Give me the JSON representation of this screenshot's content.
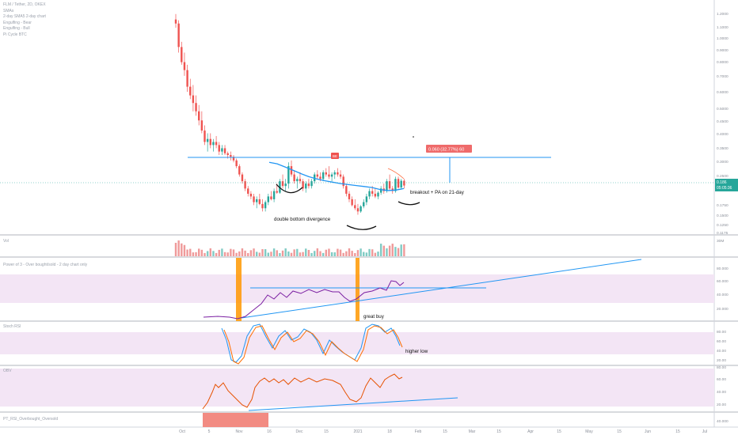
{
  "chart_data": {
    "type": "candlestick",
    "symbol_header": "FLM / Tether, 2D, OKEX",
    "legend": [
      "SMAs",
      "2-day SMA5 2-day chart",
      "Engulfing - Bear",
      "Engulfing - Bull",
      "Pi Cycle BTC"
    ],
    "price_axis": {
      "ticks": [
        "1.2000",
        "1.1000",
        "1.0000",
        "0.9000",
        "0.8000",
        "0.7000",
        "0.6000",
        "0.5000",
        "0.4500",
        "0.4000",
        "0.3500",
        "0.3000",
        "0.2500",
        "0.2000",
        "0.1750",
        "0.1500",
        "0.1250",
        "0.1175"
      ],
      "last_price": "0.186",
      "countdown": "05:05:36",
      "log_scale": true
    },
    "time_axis": [
      "Oct",
      "5",
      "Nov",
      "16",
      "Dec",
      "15",
      "2021",
      "18",
      "Feb",
      "15",
      "Mar",
      "15",
      "Apr",
      "15",
      "May",
      "15",
      "Jun",
      "15",
      "Jul"
    ],
    "candles": [
      [
        1.15,
        1.22,
        1.05,
        1.1
      ],
      [
        1.1,
        1.14,
        0.8,
        0.85
      ],
      [
        0.85,
        0.9,
        0.7,
        0.72
      ],
      [
        0.72,
        0.8,
        0.62,
        0.66
      ],
      [
        0.66,
        0.7,
        0.52,
        0.55
      ],
      [
        0.55,
        0.6,
        0.48,
        0.5
      ],
      [
        0.5,
        0.56,
        0.42,
        0.46
      ],
      [
        0.46,
        0.5,
        0.4,
        0.42
      ],
      [
        0.42,
        0.45,
        0.36,
        0.38
      ],
      [
        0.38,
        0.42,
        0.33,
        0.34
      ],
      [
        0.34,
        0.36,
        0.29,
        0.3
      ],
      [
        0.3,
        0.33,
        0.27,
        0.31
      ],
      [
        0.31,
        0.33,
        0.28,
        0.29
      ],
      [
        0.29,
        0.31,
        0.27,
        0.3
      ],
      [
        0.3,
        0.32,
        0.28,
        0.29
      ],
      [
        0.29,
        0.3,
        0.26,
        0.27
      ],
      [
        0.27,
        0.29,
        0.26,
        0.28
      ],
      [
        0.28,
        0.29,
        0.26,
        0.265
      ],
      [
        0.265,
        0.27,
        0.25,
        0.26
      ],
      [
        0.26,
        0.27,
        0.245,
        0.255
      ],
      [
        0.255,
        0.26,
        0.24,
        0.245
      ],
      [
        0.245,
        0.25,
        0.225,
        0.23
      ],
      [
        0.23,
        0.235,
        0.205,
        0.21
      ],
      [
        0.21,
        0.215,
        0.19,
        0.195
      ],
      [
        0.195,
        0.2,
        0.175,
        0.18
      ],
      [
        0.18,
        0.185,
        0.165,
        0.17
      ],
      [
        0.17,
        0.175,
        0.16,
        0.165
      ],
      [
        0.165,
        0.17,
        0.15,
        0.155
      ],
      [
        0.155,
        0.165,
        0.145,
        0.16
      ],
      [
        0.16,
        0.17,
        0.15,
        0.152
      ],
      [
        0.152,
        0.16,
        0.14,
        0.145
      ],
      [
        0.145,
        0.158,
        0.14,
        0.155
      ],
      [
        0.155,
        0.17,
        0.15,
        0.165
      ],
      [
        0.165,
        0.175,
        0.158,
        0.16
      ],
      [
        0.16,
        0.18,
        0.155,
        0.175
      ],
      [
        0.175,
        0.19,
        0.17,
        0.172
      ],
      [
        0.172,
        0.2,
        0.17,
        0.195
      ],
      [
        0.195,
        0.21,
        0.18,
        0.185
      ],
      [
        0.185,
        0.2,
        0.175,
        0.19
      ],
      [
        0.19,
        0.24,
        0.18,
        0.23
      ],
      [
        0.23,
        0.245,
        0.205,
        0.21
      ],
      [
        0.21,
        0.22,
        0.19,
        0.195
      ],
      [
        0.195,
        0.205,
        0.18,
        0.2
      ],
      [
        0.2,
        0.215,
        0.19,
        0.195
      ],
      [
        0.195,
        0.2,
        0.175,
        0.18
      ],
      [
        0.18,
        0.195,
        0.172,
        0.19
      ],
      [
        0.19,
        0.2,
        0.18,
        0.185
      ],
      [
        0.185,
        0.2,
        0.18,
        0.195
      ],
      [
        0.195,
        0.215,
        0.19,
        0.21
      ],
      [
        0.21,
        0.22,
        0.2,
        0.205
      ],
      [
        0.205,
        0.215,
        0.195,
        0.2
      ],
      [
        0.2,
        0.22,
        0.195,
        0.215
      ],
      [
        0.215,
        0.225,
        0.205,
        0.21
      ],
      [
        0.21,
        0.23,
        0.2,
        0.205
      ],
      [
        0.205,
        0.215,
        0.195,
        0.21
      ],
      [
        0.21,
        0.22,
        0.2,
        0.215
      ],
      [
        0.215,
        0.225,
        0.205,
        0.21
      ],
      [
        0.21,
        0.22,
        0.2,
        0.205
      ],
      [
        0.205,
        0.21,
        0.18,
        0.185
      ],
      [
        0.185,
        0.19,
        0.165,
        0.17
      ],
      [
        0.17,
        0.175,
        0.155,
        0.16
      ],
      [
        0.16,
        0.165,
        0.148,
        0.15
      ],
      [
        0.15,
        0.16,
        0.142,
        0.145
      ],
      [
        0.145,
        0.152,
        0.135,
        0.14
      ],
      [
        0.14,
        0.15,
        0.138,
        0.148
      ],
      [
        0.148,
        0.16,
        0.145,
        0.155
      ],
      [
        0.155,
        0.17,
        0.15,
        0.165
      ],
      [
        0.165,
        0.18,
        0.16,
        0.175
      ],
      [
        0.175,
        0.185,
        0.165,
        0.17
      ],
      [
        0.17,
        0.18,
        0.162,
        0.165
      ],
      [
        0.165,
        0.175,
        0.16,
        0.172
      ],
      [
        0.172,
        0.185,
        0.168,
        0.18
      ],
      [
        0.18,
        0.19,
        0.17,
        0.175
      ],
      [
        0.175,
        0.2,
        0.172,
        0.195
      ],
      [
        0.195,
        0.21,
        0.175,
        0.18
      ],
      [
        0.18,
        0.185,
        0.17,
        0.175
      ],
      [
        0.175,
        0.205,
        0.172,
        0.2
      ],
      [
        0.2,
        0.205,
        0.18,
        0.182
      ],
      [
        0.182,
        0.2,
        0.178,
        0.196
      ],
      [
        0.196,
        0.2,
        0.18,
        0.186
      ]
    ],
    "sma_line": [
      0.24,
      0.236,
      0.228,
      0.22,
      0.212,
      0.205,
      0.2,
      0.196,
      0.193,
      0.19,
      0.188,
      0.186,
      0.184,
      0.182,
      0.178,
      0.176,
      0.177,
      0.18
    ],
    "horizontal_level": 0.25,
    "measure_label": "0.060 (32.77%) 60",
    "signal_marker": "BE",
    "annotations": [
      "double bottom divergence",
      "breakout + PA on 21-day",
      "great buy",
      "higher low"
    ],
    "volume_pane": {
      "title": "Vol",
      "axis": "30M"
    },
    "rsi_pane": {
      "title": "Power of 3 - Over bought/sold - 2 day chart only",
      "axis": [
        "80.000",
        "60.000",
        "40.000",
        "20.000"
      ]
    },
    "stoch_pane": {
      "title": "Stoch RSI",
      "axis": [
        "80.00",
        "60.00",
        "40.00",
        "20.00"
      ]
    },
    "obv_pane": {
      "title": "OBV",
      "axis": [
        "80.00",
        "60.00",
        "40.00",
        "20.00"
      ]
    },
    "bottom_pane": {
      "title": "PT_RSI_Overbought_Oversold",
      "axis": "40.000"
    },
    "colors": {
      "up": "#26a69a",
      "down": "#ef5350",
      "sma": "#2196f3",
      "level": "#2196f3",
      "rsi": "#7b1fa2",
      "stoch_k": "#2196f3",
      "stoch_d": "#ff6d00",
      "obv": "#e65100",
      "highlight": "#ff9800",
      "band": "#f3e5f5",
      "measure_bg": "#ef6b6b"
    }
  }
}
